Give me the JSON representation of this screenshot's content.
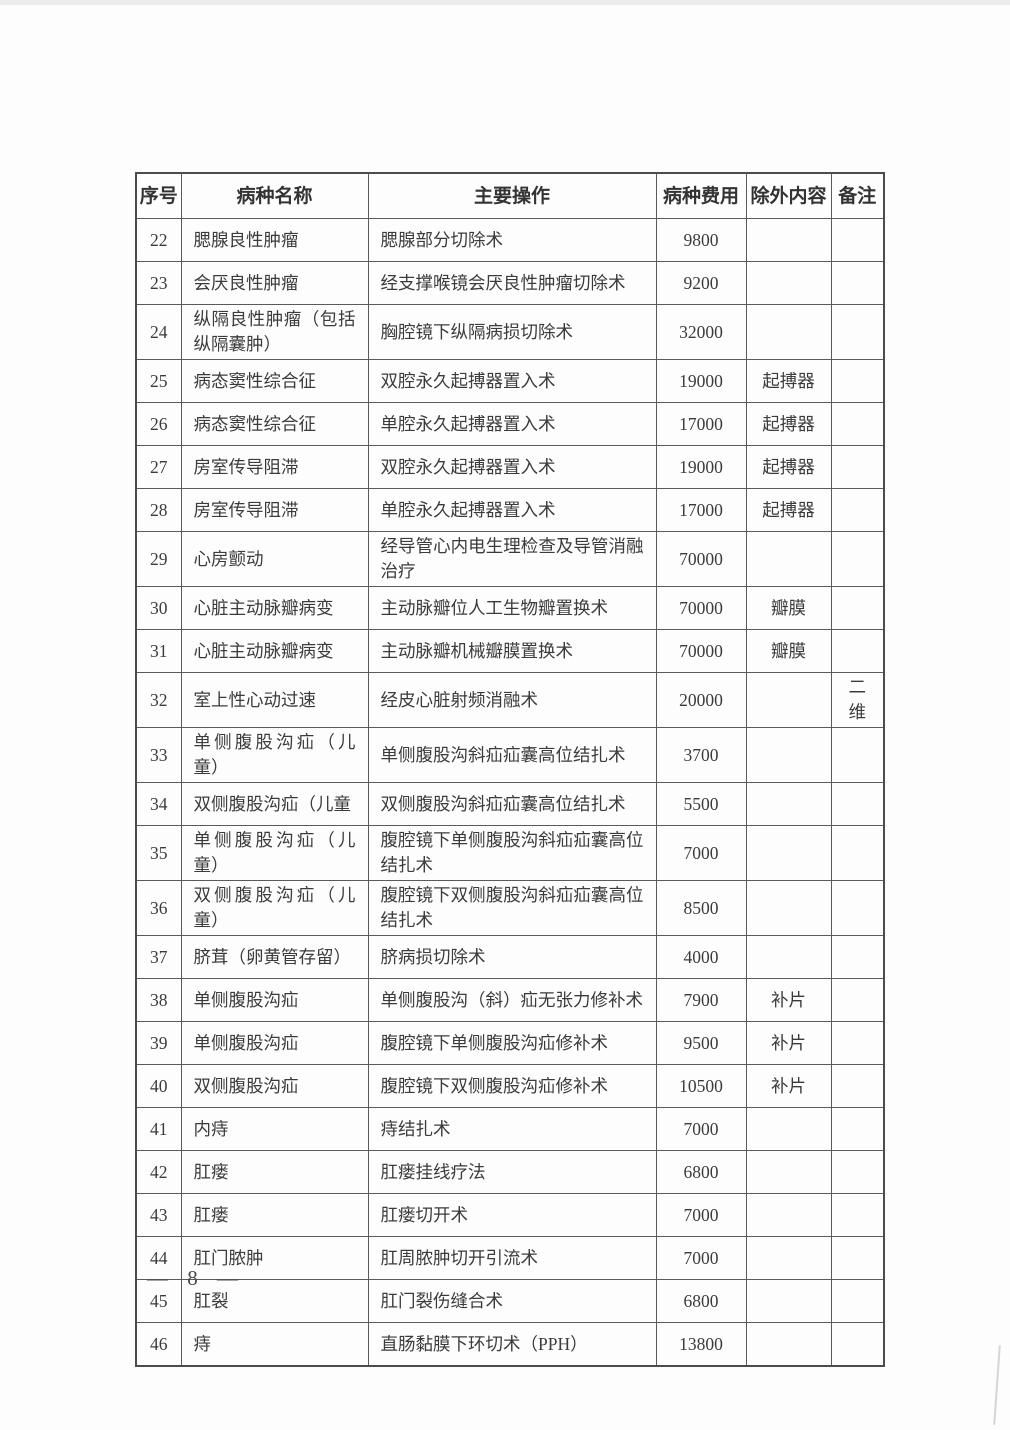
{
  "page": {
    "footer_page_number": "— 8 —"
  },
  "table": {
    "headers": [
      "序号",
      "病种名称",
      "主要操作",
      "病种费用",
      "除外内容",
      "备注"
    ],
    "rows": [
      {
        "no": "22",
        "disease": "腮腺良性肿瘤",
        "operation": "腮腺部分切除术",
        "fee": "9800",
        "exclusion": "",
        "remark": ""
      },
      {
        "no": "23",
        "disease": "会厌良性肿瘤",
        "operation": "经支撑喉镜会厌良性肿瘤切除术",
        "fee": "9200",
        "exclusion": "",
        "remark": ""
      },
      {
        "no": "24",
        "disease": "纵隔良性肿瘤（包括纵隔囊肿）",
        "operation": "胸腔镜下纵隔病损切除术",
        "fee": "32000",
        "exclusion": "",
        "remark": ""
      },
      {
        "no": "25",
        "disease": "病态窦性综合征",
        "operation": "双腔永久起搏器置入术",
        "fee": "19000",
        "exclusion": "起搏器",
        "remark": ""
      },
      {
        "no": "26",
        "disease": "病态窦性综合征",
        "operation": "单腔永久起搏器置入术",
        "fee": "17000",
        "exclusion": "起搏器",
        "remark": ""
      },
      {
        "no": "27",
        "disease": "房室传导阻滞",
        "operation": "双腔永久起搏器置入术",
        "fee": "19000",
        "exclusion": "起搏器",
        "remark": ""
      },
      {
        "no": "28",
        "disease": "房室传导阻滞",
        "operation": "单腔永久起搏器置入术",
        "fee": "17000",
        "exclusion": "起搏器",
        "remark": ""
      },
      {
        "no": "29",
        "disease": "心房颤动",
        "operation": "经导管心内电生理检查及导管消融治疗",
        "fee": "70000",
        "exclusion": "",
        "remark": ""
      },
      {
        "no": "30",
        "disease": "心脏主动脉瓣病变",
        "operation": "主动脉瓣位人工生物瓣置换术",
        "fee": "70000",
        "exclusion": "瓣膜",
        "remark": ""
      },
      {
        "no": "31",
        "disease": "心脏主动脉瓣病变",
        "operation": "主动脉瓣机械瓣膜置换术",
        "fee": "70000",
        "exclusion": "瓣膜",
        "remark": ""
      },
      {
        "no": "32",
        "disease": "室上性心动过速",
        "operation": "经皮心脏射频消融术",
        "fee": "20000",
        "exclusion": "",
        "remark": "二维"
      },
      {
        "no": "33",
        "disease": "单侧腹股沟疝（儿童）",
        "operation": "单侧腹股沟斜疝疝囊高位结扎术",
        "fee": "3700",
        "exclusion": "",
        "remark": ""
      },
      {
        "no": "34",
        "disease": "双侧腹股沟疝（儿童",
        "operation": "双侧腹股沟斜疝疝囊高位结扎术",
        "fee": "5500",
        "exclusion": "",
        "remark": ""
      },
      {
        "no": "35",
        "disease": "单侧腹股沟疝（儿童）",
        "operation": "腹腔镜下单侧腹股沟斜疝疝囊高位结扎术",
        "fee": "7000",
        "exclusion": "",
        "remark": ""
      },
      {
        "no": "36",
        "disease": "双侧腹股沟疝（儿童）",
        "operation": "腹腔镜下双侧腹股沟斜疝疝囊高位结扎术",
        "fee": "8500",
        "exclusion": "",
        "remark": ""
      },
      {
        "no": "37",
        "disease": "脐茸（卵黄管存留）",
        "operation": "脐病损切除术",
        "fee": "4000",
        "exclusion": "",
        "remark": ""
      },
      {
        "no": "38",
        "disease": "单侧腹股沟疝",
        "operation": "单侧腹股沟（斜）疝无张力修补术",
        "fee": "7900",
        "exclusion": "补片",
        "remark": ""
      },
      {
        "no": "39",
        "disease": "单侧腹股沟疝",
        "operation": "腹腔镜下单侧腹股沟疝修补术",
        "fee": "9500",
        "exclusion": "补片",
        "remark": ""
      },
      {
        "no": "40",
        "disease": "双侧腹股沟疝",
        "operation": "腹腔镜下双侧腹股沟疝修补术",
        "fee": "10500",
        "exclusion": "补片",
        "remark": ""
      },
      {
        "no": "41",
        "disease": "内痔",
        "operation": "痔结扎术",
        "fee": "7000",
        "exclusion": "",
        "remark": ""
      },
      {
        "no": "42",
        "disease": "肛瘘",
        "operation": "肛瘘挂线疗法",
        "fee": "6800",
        "exclusion": "",
        "remark": ""
      },
      {
        "no": "43",
        "disease": "肛瘘",
        "operation": "肛瘘切开术",
        "fee": "7000",
        "exclusion": "",
        "remark": ""
      },
      {
        "no": "44",
        "disease": "肛门脓肿",
        "operation": "肛周脓肿切开引流术",
        "fee": "7000",
        "exclusion": "",
        "remark": ""
      },
      {
        "no": "45",
        "disease": "肛裂",
        "operation": "肛门裂伤缝合术",
        "fee": "6800",
        "exclusion": "",
        "remark": ""
      },
      {
        "no": "46",
        "disease": "痔",
        "operation": "直肠黏膜下环切术（PPH）",
        "fee": "13800",
        "exclusion": "",
        "remark": ""
      }
    ]
  }
}
